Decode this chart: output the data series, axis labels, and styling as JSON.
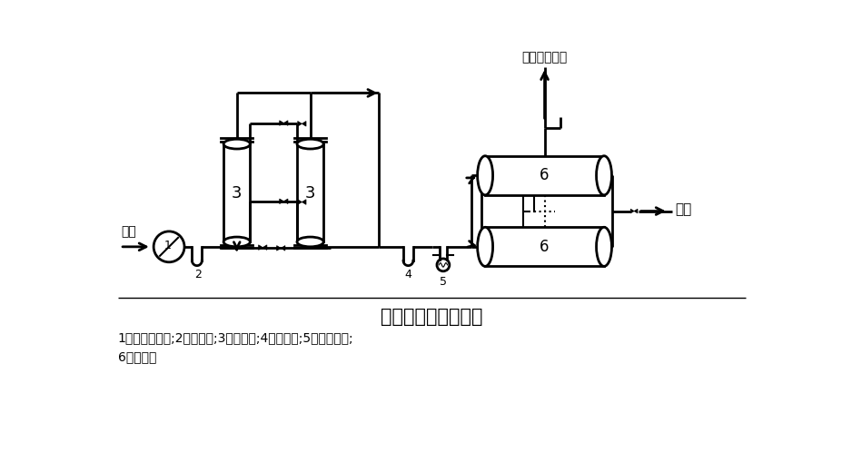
{
  "title": "膜分离制氮工艺流程",
  "caption_line1": "1一空气压缩机;2一过滤器;3一干燥机;4一过滤器;5一电加热器;",
  "caption_line2": "6一膜组件",
  "label_air": "空气",
  "label_oxy": "富氧气体放空",
  "label_n2": "氮气",
  "bg_color": "#ffffff",
  "line_color": "#000000",
  "lw": 1.5,
  "blw": 2.0
}
